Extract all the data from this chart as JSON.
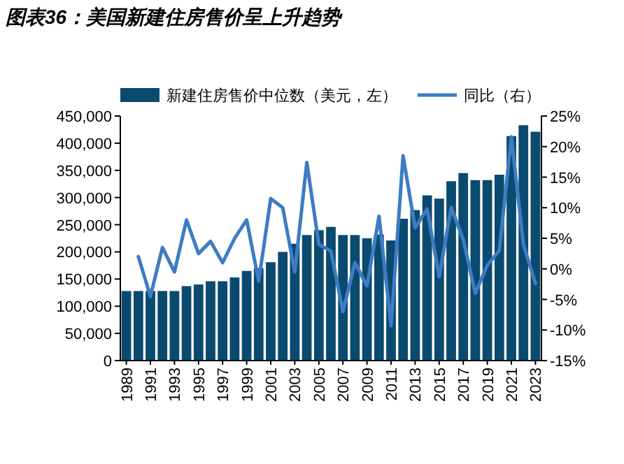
{
  "chart_data": {
    "type": "bar",
    "title": "图表36：美国新建住房售价呈上升趋势",
    "categories": [
      "1989",
      null,
      "1991",
      null,
      "1993",
      null,
      "1995",
      null,
      "1997",
      null,
      "1999",
      null,
      "2001",
      null,
      "2003",
      null,
      "2005",
      null,
      "2007",
      null,
      "2009",
      null,
      "2011",
      null,
      "2013",
      null,
      "2015",
      null,
      "2017",
      null,
      "2019",
      null,
      "2021",
      null,
      "2023"
    ],
    "series": [
      {
        "name": "新建住房售价中位数（美元，左）",
        "color": "#0b4a6f",
        "values": [
          128000,
          128000,
          128000,
          128000,
          128000,
          137000,
          140000,
          146000,
          146000,
          153000,
          165000,
          170000,
          181000,
          200000,
          215000,
          231000,
          240000,
          246000,
          231000,
          231000,
          225000,
          232000,
          221000,
          261000,
          277000,
          304000,
          298000,
          330000,
          345000,
          332000,
          332000,
          342000,
          413000,
          433000,
          421000
        ]
      },
      {
        "name": "同比（右）",
        "type": "line",
        "axis": "y2",
        "color": "#3d7cc4",
        "values": [
          null,
          2,
          -4.5,
          3.5,
          -0.5,
          8,
          2.5,
          4.5,
          1,
          5,
          8,
          -2,
          11.5,
          10,
          -0.5,
          17.4,
          4,
          2.9,
          -7,
          1,
          -2.8,
          8.6,
          -9.3,
          18.5,
          6.7,
          9.8,
          -1.3,
          10,
          4.8,
          -4,
          0.6,
          3,
          21.6,
          4,
          -2.4
        ]
      }
    ],
    "ylim": [
      0,
      450000
    ],
    "yticks": [
      {
        "value": 0,
        "label": "0"
      },
      {
        "value": 50000,
        "label": "50,000"
      },
      {
        "value": 100000,
        "label": "100,000"
      },
      {
        "value": 150000,
        "label": "150,000"
      },
      {
        "value": 200000,
        "label": "200,000"
      },
      {
        "value": 250000,
        "label": "250,000"
      },
      {
        "value": 300000,
        "label": "300,000"
      },
      {
        "value": 350000,
        "label": "350,000"
      },
      {
        "value": 400000,
        "label": "400,000"
      },
      {
        "value": 450000,
        "label": "450,000"
      }
    ],
    "y2lim": [
      -15,
      25
    ],
    "y2ticks": [
      {
        "value": -15,
        "label": "-15%"
      },
      {
        "value": -10,
        "label": "-10%"
      },
      {
        "value": -5,
        "label": "-5%"
      },
      {
        "value": 0,
        "label": "0%"
      },
      {
        "value": 5,
        "label": "5%"
      },
      {
        "value": 10,
        "label": "10%"
      },
      {
        "value": 15,
        "label": "15%"
      },
      {
        "value": 20,
        "label": "20%"
      },
      {
        "value": 25,
        "label": "25%"
      }
    ],
    "legend": "top",
    "grid": false
  }
}
